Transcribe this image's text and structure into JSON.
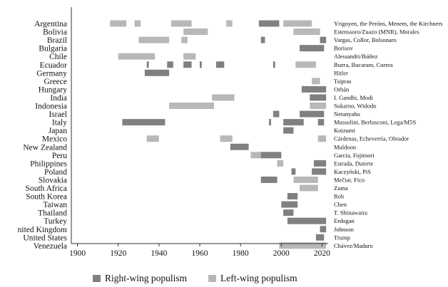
{
  "chart_data": {
    "type": "bar",
    "subtype": "timeline",
    "title": "",
    "xlabel": "",
    "ylabel": "",
    "xlim": [
      1897,
      2023
    ],
    "xticks": [
      1900,
      1920,
      1940,
      1960,
      1980,
      2000,
      2020
    ],
    "grid": false,
    "legend_position": "bottom",
    "colors": {
      "right": "#808080",
      "left": "#b8b8b8"
    },
    "legend": [
      {
        "key": "right",
        "label": "Right-wing populism"
      },
      {
        "key": "left",
        "label": "Left-wing populism"
      }
    ],
    "rows": [
      {
        "country": "Argentina",
        "leaders": "Yrigoyen, the Peróns, Menem, the Kirchners",
        "spans": [
          {
            "start": 1916,
            "end": 1924,
            "wing": "left"
          },
          {
            "start": 1928,
            "end": 1931,
            "wing": "left"
          },
          {
            "start": 1946,
            "end": 1956,
            "wing": "left"
          },
          {
            "start": 1973,
            "end": 1976,
            "wing": "left"
          },
          {
            "start": 1989,
            "end": 1999,
            "wing": "right"
          },
          {
            "start": 2001,
            "end": 2015,
            "wing": "left"
          }
        ]
      },
      {
        "country": "Bolivia",
        "leaders": "Estenssoro/Zuazo (MNR), Morales",
        "spans": [
          {
            "start": 1952,
            "end": 1964,
            "wing": "left"
          },
          {
            "start": 2006,
            "end": 2019,
            "wing": "left"
          }
        ]
      },
      {
        "country": "Brazil",
        "leaders": "Vargas, Collor, Bolsonaro",
        "spans": [
          {
            "start": 1930,
            "end": 1945,
            "wing": "left"
          },
          {
            "start": 1951,
            "end": 1954,
            "wing": "left"
          },
          {
            "start": 1990,
            "end": 1992,
            "wing": "right"
          },
          {
            "start": 2019,
            "end": 2022,
            "wing": "right"
          }
        ]
      },
      {
        "country": "Bulgaria",
        "leaders": "Borisov",
        "spans": [
          {
            "start": 2009,
            "end": 2021,
            "wing": "right"
          }
        ]
      },
      {
        "country": "Chile",
        "leaders": "Alessandri/Ibáñez",
        "spans": [
          {
            "start": 1920,
            "end": 1938,
            "wing": "left"
          },
          {
            "start": 1952,
            "end": 1958,
            "wing": "left"
          }
        ]
      },
      {
        "country": "Ecuador",
        "leaders": "Ibarra, Bucaram, Correa",
        "spans": [
          {
            "start": 1934,
            "end": 1935,
            "wing": "right"
          },
          {
            "start": 1944,
            "end": 1947,
            "wing": "right"
          },
          {
            "start": 1952,
            "end": 1956,
            "wing": "right"
          },
          {
            "start": 1960,
            "end": 1961,
            "wing": "right"
          },
          {
            "start": 1968,
            "end": 1972,
            "wing": "right"
          },
          {
            "start": 1996,
            "end": 1997,
            "wing": "right"
          },
          {
            "start": 2007,
            "end": 2017,
            "wing": "left"
          }
        ]
      },
      {
        "country": "Germany",
        "leaders": "Hitler",
        "spans": [
          {
            "start": 1933,
            "end": 1945,
            "wing": "right"
          }
        ]
      },
      {
        "country": "Greece",
        "leaders": "Tsipras",
        "spans": [
          {
            "start": 2015,
            "end": 2019,
            "wing": "left"
          }
        ]
      },
      {
        "country": "Hungary",
        "leaders": "Orbán",
        "spans": [
          {
            "start": 2010,
            "end": 2022,
            "wing": "right"
          }
        ]
      },
      {
        "country": "India",
        "leaders": "I. Gandhi, Modi",
        "spans": [
          {
            "start": 1966,
            "end": 1977,
            "wing": "left"
          },
          {
            "start": 2014,
            "end": 2022,
            "wing": "right"
          }
        ]
      },
      {
        "country": "Indonesia",
        "leaders": "Sukarno, Widodo",
        "spans": [
          {
            "start": 1945,
            "end": 1967,
            "wing": "left"
          },
          {
            "start": 2014,
            "end": 2022,
            "wing": "left"
          }
        ]
      },
      {
        "country": "Israel",
        "leaders": "Netanyahu",
        "spans": [
          {
            "start": 1996,
            "end": 1999,
            "wing": "right"
          },
          {
            "start": 2009,
            "end": 2021,
            "wing": "right"
          }
        ]
      },
      {
        "country": "Italy",
        "leaders": "Mussolini, Berlusconi, Lega/M5S",
        "spans": [
          {
            "start": 1922,
            "end": 1943,
            "wing": "right"
          },
          {
            "start": 1994,
            "end": 1995,
            "wing": "right"
          },
          {
            "start": 2001,
            "end": 2011,
            "wing": "right"
          },
          {
            "start": 2018,
            "end": 2021,
            "wing": "right"
          }
        ]
      },
      {
        "country": "Japan",
        "leaders": "Koizumi",
        "spans": [
          {
            "start": 2001,
            "end": 2006,
            "wing": "right"
          }
        ]
      },
      {
        "country": "Mexico",
        "leaders": "Cárdenas, Echeverría, Obrador",
        "spans": [
          {
            "start": 1934,
            "end": 1940,
            "wing": "left"
          },
          {
            "start": 1970,
            "end": 1976,
            "wing": "left"
          },
          {
            "start": 2018,
            "end": 2022,
            "wing": "left"
          }
        ]
      },
      {
        "country": "New Zealand",
        "leaders": "Muldoon",
        "spans": [
          {
            "start": 1975,
            "end": 1984,
            "wing": "right"
          }
        ]
      },
      {
        "country": "Peru",
        "leaders": "García, Fujimori",
        "spans": [
          {
            "start": 1985,
            "end": 1990,
            "wing": "left"
          },
          {
            "start": 1990,
            "end": 2000,
            "wing": "right"
          }
        ]
      },
      {
        "country": "Philippines",
        "leaders": "Estrada, Duterte",
        "spans": [
          {
            "start": 1998,
            "end": 2001,
            "wing": "left"
          },
          {
            "start": 2016,
            "end": 2022,
            "wing": "right"
          }
        ]
      },
      {
        "country": "Poland",
        "leaders": "Kaczyński, PiS",
        "spans": [
          {
            "start": 2005,
            "end": 2007,
            "wing": "right"
          },
          {
            "start": 2015,
            "end": 2022,
            "wing": "right"
          }
        ]
      },
      {
        "country": "Slovakia",
        "leaders": "Mečiar, Fico",
        "spans": [
          {
            "start": 1990,
            "end": 1998,
            "wing": "right"
          },
          {
            "start": 2006,
            "end": 2018,
            "wing": "left"
          }
        ]
      },
      {
        "country": "South Africa",
        "leaders": "Zuma",
        "spans": [
          {
            "start": 2009,
            "end": 2018,
            "wing": "left"
          }
        ]
      },
      {
        "country": "South Korea",
        "leaders": "Roh",
        "spans": [
          {
            "start": 2003,
            "end": 2008,
            "wing": "right"
          }
        ]
      },
      {
        "country": "Taiwan",
        "leaders": "Chen",
        "spans": [
          {
            "start": 2000,
            "end": 2008,
            "wing": "right"
          }
        ]
      },
      {
        "country": "Thailand",
        "leaders": "T. Shinawatra",
        "spans": [
          {
            "start": 2001,
            "end": 2006,
            "wing": "right"
          }
        ]
      },
      {
        "country": "Turkey",
        "leaders": "Erdogan",
        "spans": [
          {
            "start": 2003,
            "end": 2022,
            "wing": "right"
          }
        ]
      },
      {
        "country": "nited Kingdom",
        "leaders": "Johnson",
        "spans": [
          {
            "start": 2019,
            "end": 2022,
            "wing": "right"
          }
        ]
      },
      {
        "country": "United States",
        "leaders": "Trump",
        "spans": [
          {
            "start": 2017,
            "end": 2021,
            "wing": "right"
          }
        ]
      },
      {
        "country": "Venezuela",
        "leaders": "Chávez/Maduro",
        "spans": [
          {
            "start": 1999,
            "end": 2022,
            "wing": "left"
          }
        ]
      }
    ]
  }
}
